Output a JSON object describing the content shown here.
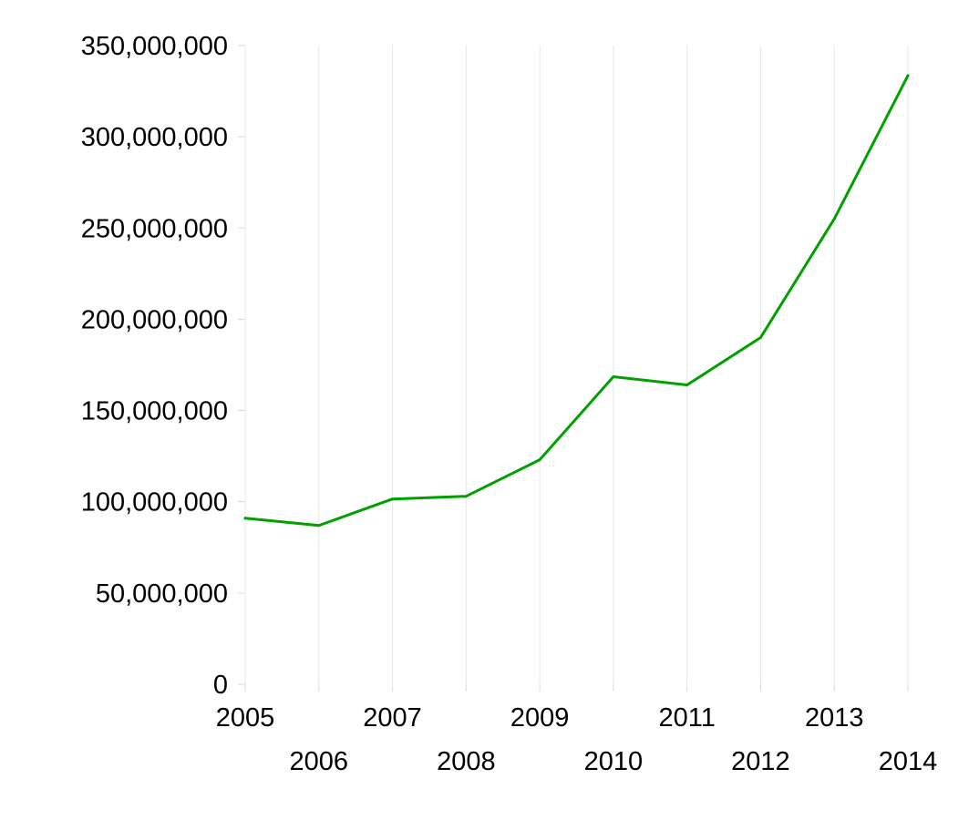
{
  "chart_data": {
    "type": "line",
    "title": "",
    "xlabel": "",
    "ylabel": "",
    "x": [
      "2005",
      "2006",
      "2007",
      "2008",
      "2009",
      "2010",
      "2011",
      "2012",
      "2013",
      "2014"
    ],
    "series": [
      {
        "values": [
          91000000,
          87000000,
          101500000,
          103000000,
          123000000,
          168500000,
          164000000,
          190000000,
          255000000,
          333500000
        ],
        "color": "#00a000"
      }
    ],
    "ylim": [
      0,
      350000000
    ],
    "y_ticks": [
      0,
      50000000,
      100000000,
      150000000,
      200000000,
      250000000,
      300000000,
      350000000
    ],
    "y_tick_labels": [
      "0",
      "50,000,000",
      "100,000,000",
      "150,000,000",
      "200,000,000",
      "250,000,000",
      "300,000,000",
      "350,000,000"
    ],
    "vertical_grid": true,
    "horizontal_grid": false,
    "legend": "none",
    "x_labels_staggered": true
  }
}
